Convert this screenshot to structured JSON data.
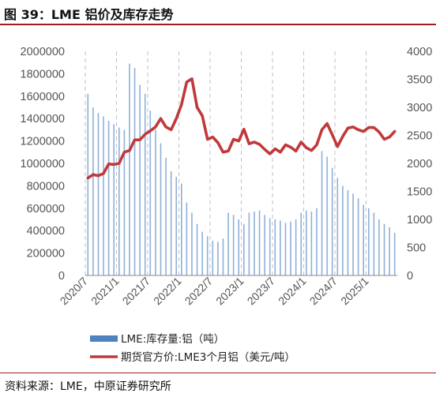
{
  "figure": {
    "title": "图 39：LME 铝价及库存走势",
    "source": "资料来源：LME，中原证券研究所"
  },
  "colors": {
    "title_rule": "#a01c22",
    "bar": "#4f81bd",
    "line": "#c0393b",
    "grid": "#b8c2cc",
    "axis": "#888888"
  },
  "chart_data": {
    "type": "bar+line",
    "x": [
      "2020/7",
      "2020/8",
      "2020/9",
      "2020/10",
      "2020/11",
      "2020/12",
      "2021/1",
      "2021/2",
      "2021/3",
      "2021/4",
      "2021/5",
      "2021/6",
      "2021/7",
      "2021/8",
      "2021/9",
      "2021/10",
      "2021/11",
      "2021/12",
      "2022/1",
      "2022/2",
      "2022/3",
      "2022/4",
      "2022/5",
      "2022/6",
      "2022/7",
      "2022/8",
      "2022/9",
      "2022/10",
      "2022/11",
      "2022/12",
      "2023/1",
      "2023/2",
      "2023/3",
      "2023/4",
      "2023/5",
      "2023/6",
      "2023/7",
      "2023/8",
      "2023/9",
      "2023/10",
      "2023/11",
      "2023/12",
      "2024/1",
      "2024/2",
      "2024/3",
      "2024/4",
      "2024/5",
      "2024/6",
      "2024/7",
      "2024/8",
      "2024/9",
      "2024/10",
      "2024/11",
      "2024/12",
      "2025/1",
      "2025/2",
      "2025/3",
      "2025/4",
      "2025/5",
      "2025/6"
    ],
    "x_tick_labels": [
      "2020/7",
      "2021/1",
      "2021/7",
      "2022/1",
      "2022/7",
      "2023/1",
      "2023/7",
      "2024/1",
      "2024/7",
      "2025/1"
    ],
    "y_left": {
      "ticks": [
        "0",
        "200000",
        "400000",
        "600000",
        "800000",
        "1000000",
        "1200000",
        "1400000",
        "1600000",
        "1800000",
        "2000000"
      ],
      "min": 0,
      "max": 2000000
    },
    "y_right": {
      "ticks": [
        "0",
        "500",
        "1000",
        "1500",
        "2000",
        "2500",
        "3000",
        "3500",
        "4000"
      ],
      "min": 0,
      "max": 4000
    },
    "series": [
      {
        "name": "LME:库存量:铝（吨）",
        "kind": "bar",
        "axis": "left",
        "values": [
          1620000,
          1500000,
          1450000,
          1420000,
          1380000,
          1350000,
          1320000,
          1300000,
          1890000,
          1850000,
          1700000,
          1620000,
          1470000,
          1300000,
          1180000,
          1050000,
          930000,
          880000,
          820000,
          650000,
          560000,
          460000,
          390000,
          350000,
          310000,
          300000,
          330000,
          560000,
          540000,
          500000,
          460000,
          560000,
          570000,
          580000,
          540000,
          510000,
          500000,
          490000,
          470000,
          480000,
          500000,
          560000,
          580000,
          570000,
          600000,
          1110000,
          1060000,
          960000,
          870000,
          800000,
          760000,
          730000,
          690000,
          630000,
          600000,
          560000,
          500000,
          460000,
          430000,
          380000
        ]
      },
      {
        "name": "期货官方价:LME3个月铝（美元/吨）",
        "kind": "line",
        "axis": "right",
        "values": [
          1740,
          1800,
          1780,
          1820,
          1990,
          1980,
          2000,
          2200,
          2230,
          2420,
          2420,
          2520,
          2580,
          2650,
          2800,
          2650,
          2600,
          2800,
          3050,
          3450,
          3510,
          3000,
          2850,
          2430,
          2470,
          2370,
          2200,
          2220,
          2430,
          2400,
          2610,
          2350,
          2380,
          2340,
          2250,
          2170,
          2260,
          2200,
          2330,
          2290,
          2220,
          2380,
          2280,
          2230,
          2330,
          2600,
          2710,
          2510,
          2300,
          2480,
          2630,
          2650,
          2600,
          2570,
          2640,
          2640,
          2560,
          2430,
          2470,
          2570
        ]
      }
    ],
    "legend_position": "bottom-left"
  }
}
